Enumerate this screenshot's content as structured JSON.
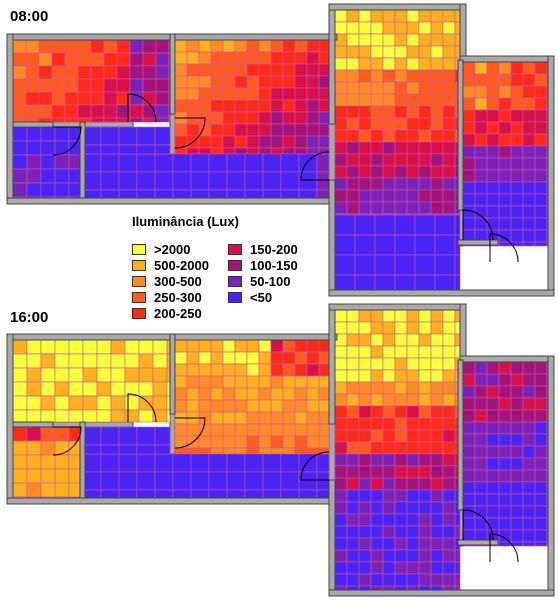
{
  "panels": [
    {
      "time": "08:00"
    },
    {
      "time": "16:00"
    }
  ],
  "legend": {
    "title": "Iluminância (Lux)",
    "items": [
      {
        "label": ">2000",
        "color": "#f8ff3b"
      },
      {
        "label": "500-2000",
        "color": "#ffb01e"
      },
      {
        "label": "300-500",
        "color": "#ff8a26"
      },
      {
        "label": "250-300",
        "color": "#ff5a1f"
      },
      {
        "label": "200-250",
        "color": "#ff2a1a"
      },
      {
        "label": "150-200",
        "color": "#d8104a"
      },
      {
        "label": "100-150",
        "color": "#a3137c"
      },
      {
        "label": "50-100",
        "color": "#7b22b8"
      },
      {
        "label": "<50",
        "color": "#4a24f4"
      }
    ]
  },
  "colors": {
    "wall": "#a9a9a9",
    "wall_outline": "#444444",
    "grid_line": "#cc55aa"
  }
}
